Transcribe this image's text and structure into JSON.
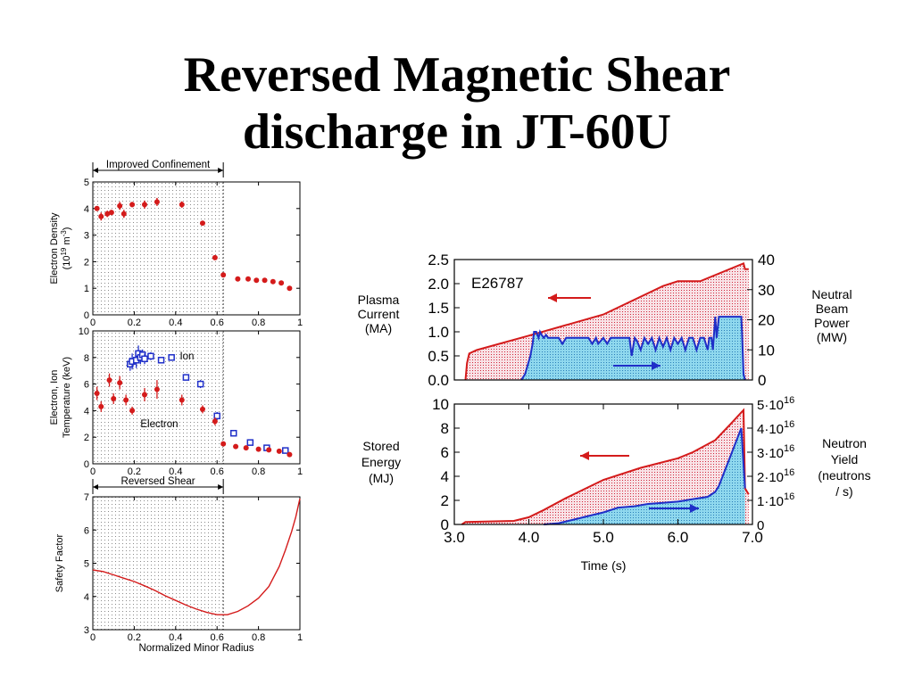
{
  "slide": {
    "title_line1": "Reversed Magnetic Shear",
    "title_line2": "discharge in JT-60U"
  },
  "colors": {
    "red": "#d41b1b",
    "blue": "#1f2fc8",
    "pink_fill": "#f5d6dc",
    "cyan_fill": "#8fd8ee",
    "dots": "#7a7a7a"
  },
  "chart_data": [
    {
      "type": "scatter",
      "id": "electron-density",
      "ylabel": "Electron Density",
      "ylabel_units": "(10^19 m^-3)",
      "bracket_label": "Improved Confinement",
      "xlim": [
        0,
        1
      ],
      "ylim": [
        0,
        5
      ],
      "xticks": [
        "0",
        "0.2",
        "0.4",
        "0.6",
        "0.8",
        "1"
      ],
      "yticks": [
        "0",
        "1",
        "2",
        "3",
        "4",
        "5"
      ],
      "shaded_region": [
        0,
        0.63
      ],
      "series": [
        {
          "color": "red",
          "points": [
            [
              0.02,
              4.0
            ],
            [
              0.04,
              3.7
            ],
            [
              0.07,
              3.8
            ],
            [
              0.09,
              3.85
            ],
            [
              0.13,
              4.1
            ],
            [
              0.15,
              3.8
            ],
            [
              0.19,
              4.15
            ],
            [
              0.25,
              4.15
            ],
            [
              0.31,
              4.25
            ],
            [
              0.43,
              4.15
            ],
            [
              0.53,
              3.45
            ],
            [
              0.59,
              2.15
            ],
            [
              0.63,
              1.5
            ],
            [
              0.7,
              1.35
            ],
            [
              0.75,
              1.35
            ],
            [
              0.79,
              1.3
            ],
            [
              0.83,
              1.3
            ],
            [
              0.87,
              1.25
            ],
            [
              0.91,
              1.2
            ],
            [
              0.95,
              1.0
            ]
          ],
          "errors": [
            0,
            0.15,
            0.12,
            0.1,
            0.15,
            0.15,
            0.1,
            0.15,
            0.15,
            0.12,
            0,
            0,
            0,
            0,
            0,
            0,
            0,
            0,
            0,
            0
          ]
        }
      ]
    },
    {
      "type": "scatter",
      "id": "electron-ion-temperature",
      "ylabel": "Electron, Ion",
      "ylabel2": "Temperature (keV)",
      "xlim": [
        0,
        1
      ],
      "ylim": [
        0,
        10
      ],
      "xticks": [
        "0",
        "0.2",
        "0.4",
        "0.6",
        "0.8",
        "1"
      ],
      "yticks": [
        "0",
        "2",
        "4",
        "6",
        "8",
        "10"
      ],
      "shaded_region": [
        0,
        0.63
      ],
      "annotations": [
        "Ion",
        "Electron"
      ],
      "series": [
        {
          "name": "Ion",
          "color": "blue",
          "marker": "square",
          "points": [
            [
              0.18,
              7.5
            ],
            [
              0.19,
              7.7
            ],
            [
              0.21,
              7.8
            ],
            [
              0.22,
              8.3
            ],
            [
              0.23,
              8.0
            ],
            [
              0.24,
              8.2
            ],
            [
              0.25,
              7.9
            ],
            [
              0.28,
              8.1
            ],
            [
              0.33,
              7.8
            ],
            [
              0.38,
              8.0
            ],
            [
              0.45,
              6.5
            ],
            [
              0.52,
              6.0
            ],
            [
              0.6,
              3.6
            ],
            [
              0.68,
              2.3
            ],
            [
              0.76,
              1.6
            ],
            [
              0.84,
              1.2
            ],
            [
              0.93,
              1.0
            ]
          ],
          "errors": [
            0.5,
            0.6,
            0.6,
            0.6,
            0.5,
            0.4,
            0.4,
            0.3,
            0,
            0,
            0,
            0.3,
            0.3,
            0,
            0,
            0,
            0
          ]
        },
        {
          "name": "Electron",
          "color": "red",
          "marker": "circle",
          "points": [
            [
              0.02,
              5.3
            ],
            [
              0.04,
              4.3
            ],
            [
              0.08,
              6.3
            ],
            [
              0.1,
              4.9
            ],
            [
              0.13,
              6.1
            ],
            [
              0.16,
              4.8
            ],
            [
              0.19,
              4.0
            ],
            [
              0.25,
              5.2
            ],
            [
              0.31,
              5.6
            ],
            [
              0.43,
              4.8
            ],
            [
              0.53,
              4.1
            ],
            [
              0.59,
              3.2
            ],
            [
              0.63,
              1.5
            ],
            [
              0.69,
              1.3
            ],
            [
              0.74,
              1.2
            ],
            [
              0.8,
              1.1
            ],
            [
              0.85,
              1.05
            ],
            [
              0.9,
              0.95
            ],
            [
              0.95,
              0.7
            ]
          ],
          "errors": [
            0.5,
            0.4,
            0.5,
            0.4,
            0.5,
            0.4,
            0.3,
            0.5,
            0.7,
            0.4,
            0.3,
            0.3,
            0,
            0,
            0,
            0,
            0,
            0,
            0
          ]
        }
      ]
    },
    {
      "type": "line",
      "id": "safety-factor",
      "ylabel": "Safety Factor",
      "xlabel": "Normalized Minor Radius",
      "bracket_label": "Reversed Shear",
      "xlim": [
        0,
        1
      ],
      "ylim": [
        3,
        7
      ],
      "xticks": [
        "0",
        "0.2",
        "0.4",
        "0.6",
        "0.8",
        "1"
      ],
      "yticks": [
        "3",
        "4",
        "5",
        "6",
        "7"
      ],
      "shaded_region": [
        0,
        0.63
      ],
      "series": [
        {
          "color": "red",
          "x": [
            0,
            0.05,
            0.1,
            0.15,
            0.2,
            0.25,
            0.3,
            0.35,
            0.4,
            0.45,
            0.5,
            0.55,
            0.6,
            0.65,
            0.7,
            0.75,
            0.8,
            0.85,
            0.9,
            0.93,
            0.96,
            0.98,
            1.0
          ],
          "y": [
            4.8,
            4.75,
            4.65,
            4.55,
            4.45,
            4.32,
            4.18,
            4.02,
            3.88,
            3.74,
            3.62,
            3.52,
            3.45,
            3.45,
            3.55,
            3.72,
            3.95,
            4.3,
            4.9,
            5.4,
            5.95,
            6.4,
            6.95
          ]
        }
      ]
    },
    {
      "type": "area",
      "id": "current-and-beam-power",
      "label": "E26787",
      "ylabel_left": [
        "Plasma",
        "Current",
        "(MA)"
      ],
      "ylabel_right": [
        "Neutral",
        "Beam",
        "Power",
        "(MW)"
      ],
      "xlim": [
        3.0,
        7.0
      ],
      "ylim_left": [
        0,
        2.5
      ],
      "ylim_right": [
        0,
        40
      ],
      "yticks_left": [
        "0.0",
        "0.5",
        "1.0",
        "1.5",
        "2.0",
        "2.5"
      ],
      "yticks_right": [
        "0",
        "10",
        "20",
        "30",
        "40"
      ],
      "series": [
        {
          "name_axis": "left",
          "color": "red",
          "fill": "pink",
          "x": [
            3.15,
            3.17,
            3.2,
            3.3,
            4.0,
            5.0,
            5.8,
            6.0,
            6.3,
            6.88,
            6.9,
            6.95
          ],
          "y": [
            0.0,
            0.35,
            0.55,
            0.62,
            0.92,
            1.36,
            1.95,
            2.05,
            2.05,
            2.42,
            2.3,
            2.3
          ]
        },
        {
          "name_axis": "right",
          "color": "blue",
          "fill": "cyan",
          "x": [
            3.9,
            3.95,
            4.02,
            4.05,
            4.07,
            4.1,
            4.13,
            4.15,
            4.17,
            4.2,
            4.23,
            4.26,
            4.3,
            4.4,
            4.45,
            4.5,
            4.55,
            4.8,
            4.85,
            4.9,
            4.93,
            5.0,
            5.05,
            5.1,
            5.35,
            5.38,
            5.42,
            5.45,
            5.5,
            5.55,
            5.6,
            5.65,
            5.7,
            5.75,
            5.8,
            5.85,
            5.9,
            5.95,
            6.0,
            6.05,
            6.1,
            6.15,
            6.2,
            6.25,
            6.3,
            6.35,
            6.4,
            6.42,
            6.45,
            6.47,
            6.5,
            6.52,
            6.55,
            6.57,
            6.6,
            6.65,
            6.7,
            6.75,
            6.8,
            6.85,
            6.86,
            6.88,
            6.9
          ],
          "y": [
            0,
            2,
            8,
            12,
            16,
            16,
            14,
            16,
            15,
            14,
            15,
            14,
            14,
            14,
            12,
            14,
            14,
            14,
            12,
            14,
            12,
            14,
            12,
            14,
            14,
            8,
            14,
            13,
            10,
            14,
            12,
            14,
            10,
            14,
            11,
            14,
            10,
            14,
            12,
            14,
            10,
            14,
            14,
            10,
            14,
            14,
            10,
            14,
            14,
            10,
            21,
            14,
            21,
            21,
            21,
            21,
            21,
            21,
            21,
            21,
            16,
            2,
            0
          ]
        }
      ]
    },
    {
      "type": "area",
      "id": "stored-energy-and-neutron-yield",
      "ylabel_left": [
        "Stored",
        "Energy",
        "(MJ)"
      ],
      "ylabel_right": [
        "Neutron",
        "Yield",
        "(neutrons",
        "/ s)"
      ],
      "xlabel": "Time (s)",
      "xlim": [
        3.0,
        7.0
      ],
      "ylim_left": [
        0,
        10
      ],
      "ylim_right": [
        0,
        5
      ],
      "xticks": [
        "3.0",
        "4.0",
        "5.0",
        "6.0",
        "7.0"
      ],
      "yticks_left": [
        "0",
        "2",
        "4",
        "6",
        "8",
        "10"
      ],
      "yticks_right": [
        {
          "mant": "0",
          "exp": ""
        },
        {
          "mant": "1·10",
          "exp": "16"
        },
        {
          "mant": "2·10",
          "exp": "16"
        },
        {
          "mant": "3·10",
          "exp": "16"
        },
        {
          "mant": "4·10",
          "exp": "16"
        },
        {
          "mant": "5·10",
          "exp": "16"
        }
      ],
      "series": [
        {
          "name_axis": "left",
          "color": "red",
          "fill": "pink",
          "x": [
            3.1,
            3.15,
            3.8,
            4.0,
            4.2,
            4.5,
            4.8,
            5.0,
            5.5,
            6.0,
            6.2,
            6.5,
            6.7,
            6.85,
            6.88,
            6.9,
            6.95
          ],
          "y": [
            0.0,
            0.2,
            0.3,
            0.6,
            1.2,
            2.2,
            3.1,
            3.7,
            4.7,
            5.5,
            6.0,
            7.0,
            8.3,
            9.3,
            9.5,
            3.0,
            2.5
          ]
        },
        {
          "name_axis": "right",
          "color": "blue",
          "fill": "cyan",
          "x": [
            4.2,
            4.4,
            4.6,
            4.8,
            5.0,
            5.2,
            5.4,
            5.6,
            5.8,
            6.0,
            6.2,
            6.4,
            6.5,
            6.55,
            6.6,
            6.7,
            6.8,
            6.85,
            6.88,
            6.9
          ],
          "y": [
            0.0,
            0.05,
            0.2,
            0.35,
            0.5,
            0.7,
            0.75,
            0.85,
            0.9,
            0.95,
            1.05,
            1.15,
            1.35,
            1.6,
            2.0,
            2.8,
            3.6,
            4.0,
            2.5,
            1.5
          ]
        }
      ]
    }
  ]
}
